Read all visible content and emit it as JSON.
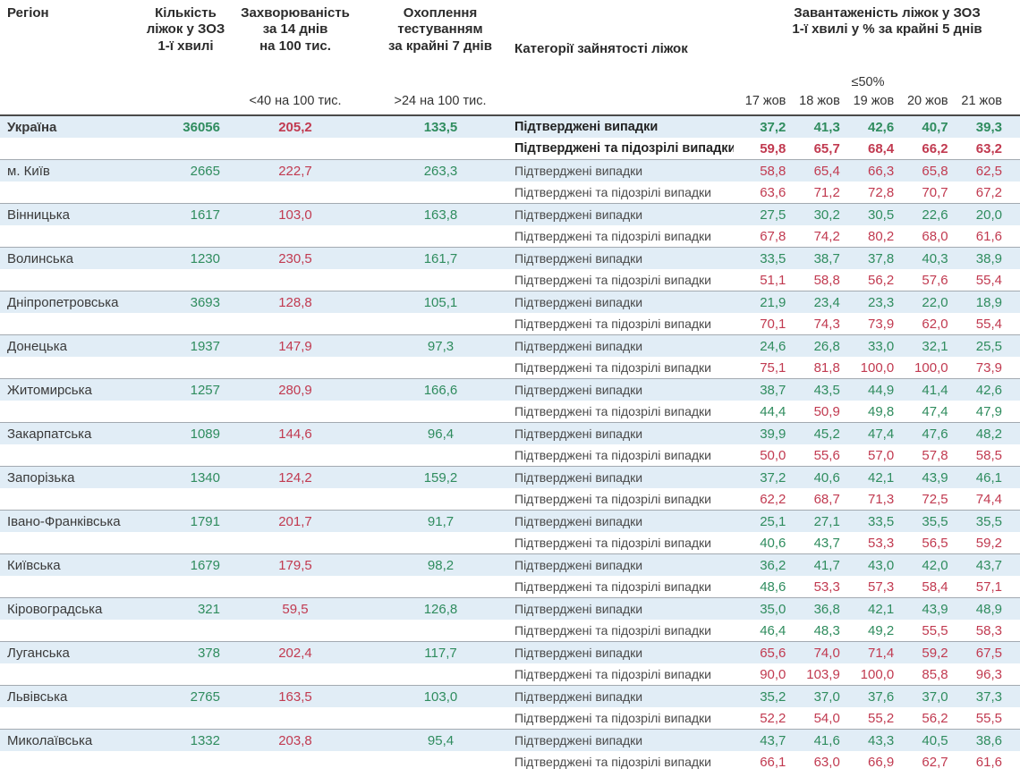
{
  "header": {
    "region": "Регіон",
    "beds": "Кількість\nліжок у ЗОЗ\n1-ї хвилі",
    "incidence": "Захворюваність\nза 14 днів\nна 100 тис.",
    "testing": "Охоплення\nтестуванням\nза крайні 7 днів",
    "category": "Категорії зайнятості ліжок",
    "occupancy": "Завантаженість ліжок у ЗОЗ\n1-ї хвилі у % за крайні 5 днів",
    "incidence_threshold": "<40 на 100 тис.",
    "testing_threshold": ">24 на 100 тис.",
    "occupancy_threshold": "≤50%",
    "dates": [
      "17 жов",
      "18 жов",
      "19 жов",
      "20 жов",
      "21 жов"
    ]
  },
  "labels": {
    "confirmed": "Підтверджені випадки",
    "confirmed_suspected": "Підтверджені та підозрілі випадки"
  },
  "colors": {
    "green": "#2f8c5e",
    "red": "#c13a50",
    "row_highlight": "#e1edf6"
  },
  "thresholds": {
    "incidence_green_below": 40,
    "testing_green_above": 24,
    "occupancy_green_below": 50
  },
  "regions": [
    {
      "name": "Україна",
      "bold": true,
      "beds": "36056",
      "incidence": "205,2",
      "testing": "133,5",
      "occupancy_confirmed": [
        "37,2",
        "41,3",
        "42,6",
        "40,7",
        "39,3"
      ],
      "occupancy_confirmed_suspected": [
        "59,8",
        "65,7",
        "68,4",
        "66,2",
        "63,2"
      ]
    },
    {
      "name": "м. Київ",
      "bold": false,
      "beds": "2665",
      "incidence": "222,7",
      "testing": "263,3",
      "occupancy_confirmed": [
        "58,8",
        "65,4",
        "66,3",
        "65,8",
        "62,5"
      ],
      "occupancy_confirmed_suspected": [
        "63,6",
        "71,2",
        "72,8",
        "70,7",
        "67,2"
      ]
    },
    {
      "name": "Вінницька",
      "bold": false,
      "beds": "1617",
      "incidence": "103,0",
      "testing": "163,8",
      "occupancy_confirmed": [
        "27,5",
        "30,2",
        "30,5",
        "22,6",
        "20,0"
      ],
      "occupancy_confirmed_suspected": [
        "67,8",
        "74,2",
        "80,2",
        "68,0",
        "61,6"
      ]
    },
    {
      "name": "Волинська",
      "bold": false,
      "beds": "1230",
      "incidence": "230,5",
      "testing": "161,7",
      "occupancy_confirmed": [
        "33,5",
        "38,7",
        "37,8",
        "40,3",
        "38,9"
      ],
      "occupancy_confirmed_suspected": [
        "51,1",
        "58,8",
        "56,2",
        "57,6",
        "55,4"
      ]
    },
    {
      "name": "Дніпропетровська",
      "bold": false,
      "beds": "3693",
      "incidence": "128,8",
      "testing": "105,1",
      "occupancy_confirmed": [
        "21,9",
        "23,4",
        "23,3",
        "22,0",
        "18,9"
      ],
      "occupancy_confirmed_suspected": [
        "70,1",
        "74,3",
        "73,9",
        "62,0",
        "55,4"
      ]
    },
    {
      "name": "Донецька",
      "bold": false,
      "beds": "1937",
      "incidence": "147,9",
      "testing": "97,3",
      "occupancy_confirmed": [
        "24,6",
        "26,8",
        "33,0",
        "32,1",
        "25,5"
      ],
      "occupancy_confirmed_suspected": [
        "75,1",
        "81,8",
        "100,0",
        "100,0",
        "73,9"
      ]
    },
    {
      "name": "Житомирська",
      "bold": false,
      "beds": "1257",
      "incidence": "280,9",
      "testing": "166,6",
      "occupancy_confirmed": [
        "38,7",
        "43,5",
        "44,9",
        "41,4",
        "42,6"
      ],
      "occupancy_confirmed_suspected": [
        "44,4",
        "50,9",
        "49,8",
        "47,4",
        "47,9"
      ]
    },
    {
      "name": "Закарпатська",
      "bold": false,
      "beds": "1089",
      "incidence": "144,6",
      "testing": "96,4",
      "occupancy_confirmed": [
        "39,9",
        "45,2",
        "47,4",
        "47,6",
        "48,2"
      ],
      "occupancy_confirmed_suspected": [
        "50,0",
        "55,6",
        "57,0",
        "57,8",
        "58,5"
      ]
    },
    {
      "name": "Запорізька",
      "bold": false,
      "beds": "1340",
      "incidence": "124,2",
      "testing": "159,2",
      "occupancy_confirmed": [
        "37,2",
        "40,6",
        "42,1",
        "43,9",
        "46,1"
      ],
      "occupancy_confirmed_suspected": [
        "62,2",
        "68,7",
        "71,3",
        "72,5",
        "74,4"
      ]
    },
    {
      "name": "Івано-Франківська",
      "bold": false,
      "beds": "1791",
      "incidence": "201,7",
      "testing": "91,7",
      "occupancy_confirmed": [
        "25,1",
        "27,1",
        "33,5",
        "35,5",
        "35,5"
      ],
      "occupancy_confirmed_suspected": [
        "40,6",
        "43,7",
        "53,3",
        "56,5",
        "59,2"
      ]
    },
    {
      "name": "Київська",
      "bold": false,
      "beds": "1679",
      "incidence": "179,5",
      "testing": "98,2",
      "occupancy_confirmed": [
        "36,2",
        "41,7",
        "43,0",
        "42,0",
        "43,7"
      ],
      "occupancy_confirmed_suspected": [
        "48,6",
        "53,3",
        "57,3",
        "58,4",
        "57,1"
      ]
    },
    {
      "name": "Кіровоградська",
      "bold": false,
      "beds": "321",
      "incidence": "59,5",
      "testing": "126,8",
      "occupancy_confirmed": [
        "35,0",
        "36,8",
        "42,1",
        "43,9",
        "48,9"
      ],
      "occupancy_confirmed_suspected": [
        "46,4",
        "48,3",
        "49,2",
        "55,5",
        "58,3"
      ]
    },
    {
      "name": "Луганська",
      "bold": false,
      "beds": "378",
      "incidence": "202,4",
      "testing": "117,7",
      "occupancy_confirmed": [
        "65,6",
        "74,0",
        "71,4",
        "59,2",
        "67,5"
      ],
      "occupancy_confirmed_suspected": [
        "90,0",
        "103,9",
        "100,0",
        "85,8",
        "96,3"
      ]
    },
    {
      "name": "Львівська",
      "bold": false,
      "beds": "2765",
      "incidence": "163,5",
      "testing": "103,0",
      "occupancy_confirmed": [
        "35,2",
        "37,0",
        "37,6",
        "37,0",
        "37,3"
      ],
      "occupancy_confirmed_suspected": [
        "52,2",
        "54,0",
        "55,2",
        "56,2",
        "55,5"
      ]
    },
    {
      "name": "Миколаївська",
      "bold": false,
      "beds": "1332",
      "incidence": "203,8",
      "testing": "95,4",
      "occupancy_confirmed": [
        "43,7",
        "41,6",
        "43,3",
        "40,5",
        "38,6"
      ],
      "occupancy_confirmed_suspected": [
        "66,1",
        "63,0",
        "66,9",
        "62,7",
        "61,6"
      ]
    }
  ]
}
